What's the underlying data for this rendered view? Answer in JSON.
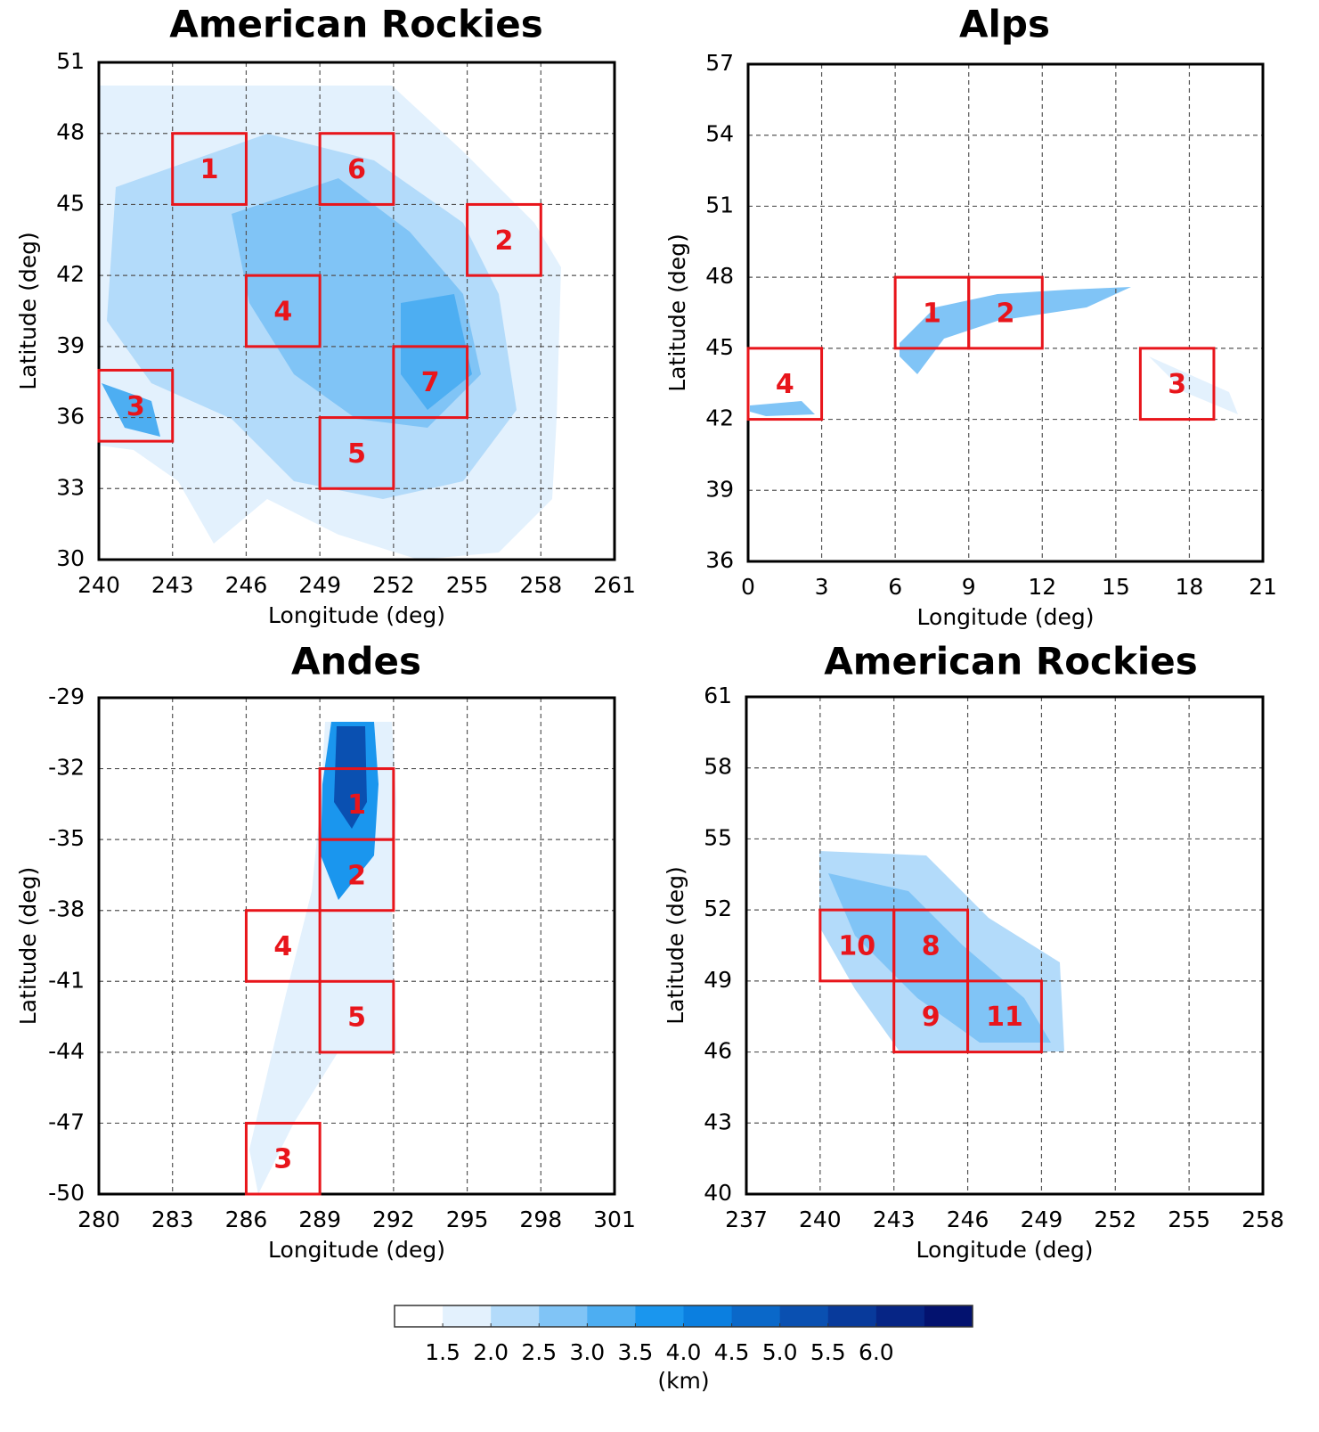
{
  "chart_data": [
    {
      "type": "map",
      "title": "American Rockies",
      "xlabel": "Longitude (deg)",
      "ylabel": "Latitude (deg)",
      "xlim": [
        240,
        261
      ],
      "ylim": [
        30,
        51
      ],
      "xticks": [
        240,
        243,
        246,
        249,
        252,
        255,
        258,
        261
      ],
      "yticks": [
        30,
        33,
        36,
        39,
        42,
        45,
        48,
        51
      ],
      "grid": true,
      "box_color": "#e8151b",
      "regions": [
        {
          "label": "1",
          "lon": [
            243,
            246
          ],
          "lat": [
            45,
            48
          ]
        },
        {
          "label": "6",
          "lon": [
            249,
            252
          ],
          "lat": [
            45,
            48
          ]
        },
        {
          "label": "2",
          "lon": [
            255,
            258
          ],
          "lat": [
            42,
            45
          ]
        },
        {
          "label": "4",
          "lon": [
            246,
            249
          ],
          "lat": [
            39,
            42
          ]
        },
        {
          "label": "3",
          "lon": [
            240,
            243
          ],
          "lat": [
            35,
            38
          ]
        },
        {
          "label": "7",
          "lon": [
            252,
            255
          ],
          "lat": [
            36,
            39
          ]
        },
        {
          "label": "5",
          "lon": [
            249,
            252
          ],
          "lat": [
            33,
            36
          ]
        }
      ]
    },
    {
      "type": "map",
      "title": "Alps",
      "xlabel": "Longitude (deg)",
      "ylabel": "Latitude (deg)",
      "xlim": [
        0,
        21
      ],
      "ylim": [
        36,
        57
      ],
      "xticks": [
        0,
        3,
        6,
        9,
        12,
        15,
        18,
        21
      ],
      "yticks": [
        36,
        39,
        42,
        45,
        48,
        51,
        54,
        57
      ],
      "grid": true,
      "box_color": "#e8151b",
      "regions": [
        {
          "label": "1",
          "lon": [
            6,
            9
          ],
          "lat": [
            45,
            48
          ]
        },
        {
          "label": "2",
          "lon": [
            9,
            12
          ],
          "lat": [
            45,
            48
          ]
        },
        {
          "label": "4",
          "lon": [
            0,
            3
          ],
          "lat": [
            42,
            45
          ]
        },
        {
          "label": "3",
          "lon": [
            16,
            19
          ],
          "lat": [
            42,
            45
          ]
        }
      ]
    },
    {
      "type": "map",
      "title": "Andes",
      "xlabel": "Longitude (deg)",
      "ylabel": "Latitude (deg)",
      "xlim": [
        280,
        301
      ],
      "ylim": [
        -50,
        -29
      ],
      "xticks": [
        280,
        283,
        286,
        289,
        292,
        295,
        298,
        301
      ],
      "yticks": [
        -50,
        -47,
        -44,
        -41,
        -38,
        -35,
        -32,
        -29
      ],
      "grid": true,
      "box_color": "#e8151b",
      "regions": [
        {
          "label": "1",
          "lon": [
            289,
            292
          ],
          "lat": [
            -35,
            -32
          ]
        },
        {
          "label": "2",
          "lon": [
            289,
            292
          ],
          "lat": [
            -38,
            -35
          ]
        },
        {
          "label": "4",
          "lon": [
            286,
            289
          ],
          "lat": [
            -41,
            -38
          ]
        },
        {
          "label": "5",
          "lon": [
            289,
            292
          ],
          "lat": [
            -44,
            -41
          ]
        },
        {
          "label": "3",
          "lon": [
            286,
            289
          ],
          "lat": [
            -50,
            -47
          ]
        }
      ]
    },
    {
      "type": "map",
      "title": "American Rockies",
      "xlabel": "Longitude (deg)",
      "ylabel": "Latitude (deg)",
      "xlim": [
        237,
        258
      ],
      "ylim": [
        40,
        61
      ],
      "xticks": [
        237,
        240,
        243,
        246,
        249,
        252,
        255,
        258
      ],
      "yticks": [
        40,
        43,
        46,
        49,
        52,
        55,
        58,
        61
      ],
      "grid": true,
      "box_color": "#e8151b",
      "regions": [
        {
          "label": "10",
          "lon": [
            240,
            243
          ],
          "lat": [
            49,
            52
          ]
        },
        {
          "label": "8",
          "lon": [
            243,
            246
          ],
          "lat": [
            49,
            52
          ]
        },
        {
          "label": "9",
          "lon": [
            243,
            246
          ],
          "lat": [
            46,
            49
          ]
        },
        {
          "label": "11",
          "lon": [
            246,
            249
          ],
          "lat": [
            46,
            49
          ]
        }
      ]
    }
  ],
  "colorbar": {
    "label": "(km)",
    "lim": [
      1.0,
      7.0
    ],
    "colors": [
      "#ffffff",
      "#e3f1fd",
      "#b3dbfa",
      "#80c4f6",
      "#4daef2",
      "#1a96ee",
      "#0b7fe0",
      "#0a68c9",
      "#0a50b1",
      "#083a9b",
      "#062585",
      "#03126f"
    ],
    "ticks": [
      1.5,
      {
        "value": 2,
        "label": "2.0"
      },
      2.5,
      {
        "value": 3,
        "label": "3.0"
      },
      3.5,
      {
        "value": 4,
        "label": "4.0"
      },
      4.5,
      {
        "value": 5,
        "label": "5.0"
      },
      5.5,
      {
        "value": 6,
        "label": "6.0"
      }
    ]
  }
}
